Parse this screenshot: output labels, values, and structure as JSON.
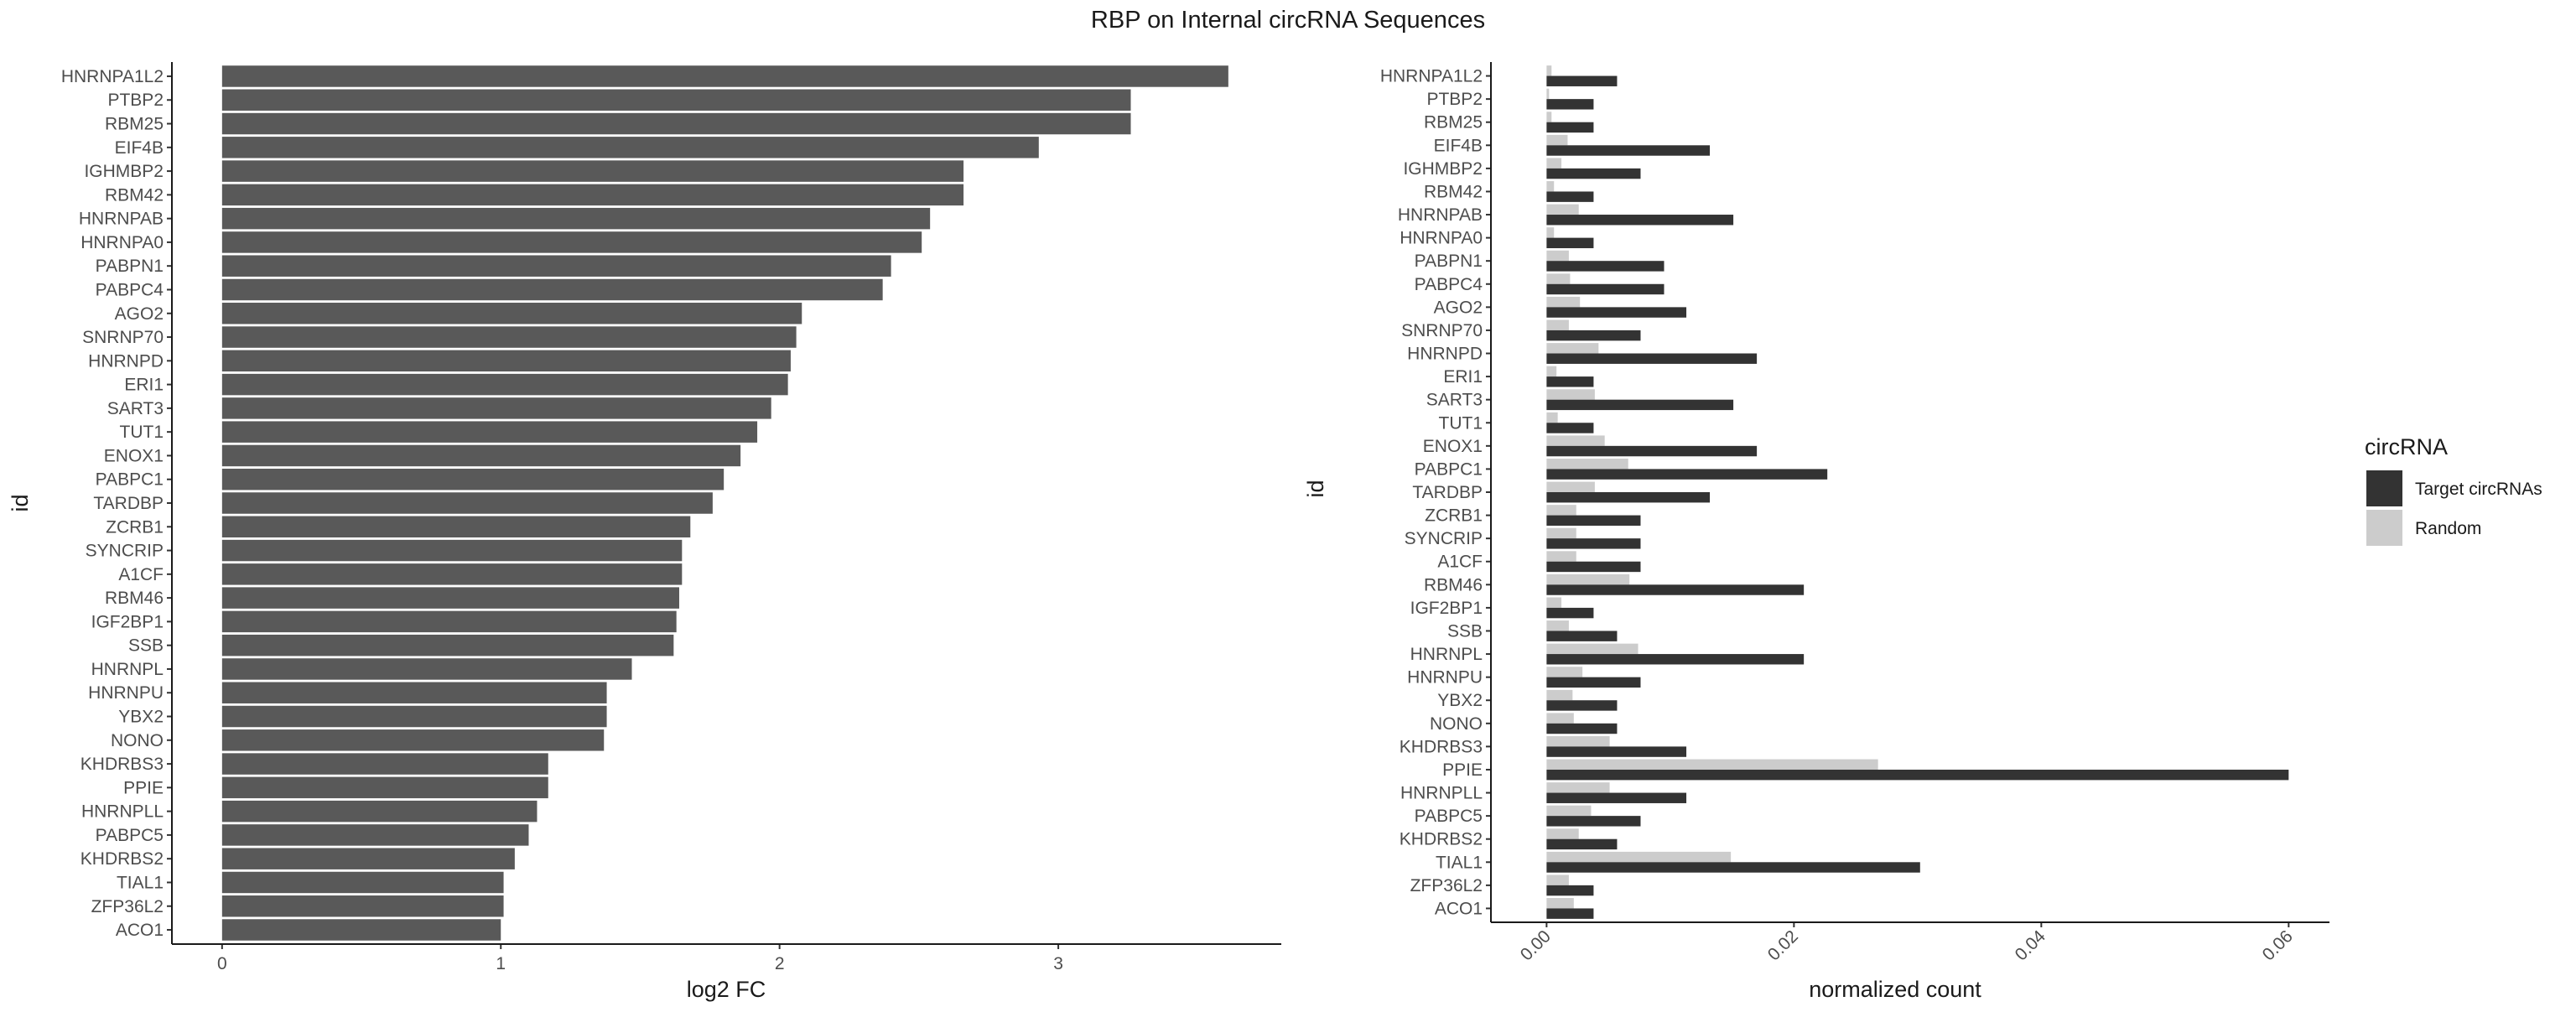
{
  "title": "RBP on Internal circRNA Sequences",
  "chart_data": [
    {
      "type": "bar",
      "orientation": "horizontal",
      "xlabel": "log2 FC",
      "ylabel": "id",
      "xlim": [
        -0.18,
        3.8
      ],
      "xticks": [
        0,
        1,
        2,
        3
      ],
      "xtick_labels": [
        "0",
        "1",
        "2",
        "3"
      ],
      "grid": false,
      "colors": {
        "bar": "#595959"
      },
      "categories": [
        "HNRNPA1L2",
        "PTBP2",
        "RBM25",
        "EIF4B",
        "IGHMBP2",
        "RBM42",
        "HNRNPAB",
        "HNRNPA0",
        "PABPN1",
        "PABPC4",
        "AGO2",
        "SNRNP70",
        "HNRNPD",
        "ERI1",
        "SART3",
        "TUT1",
        "ENOX1",
        "PABPC1",
        "TARDBP",
        "ZCRB1",
        "SYNCRIP",
        "A1CF",
        "RBM46",
        "IGF2BP1",
        "SSB",
        "HNRNPL",
        "HNRNPU",
        "YBX2",
        "NONO",
        "KHDRBS3",
        "PPIE",
        "HNRNPLL",
        "PABPC5",
        "KHDRBS2",
        "TIAL1",
        "ZFP36L2",
        "ACO1"
      ],
      "values": [
        3.61,
        3.26,
        3.26,
        2.93,
        2.66,
        2.66,
        2.54,
        2.51,
        2.4,
        2.37,
        2.08,
        2.06,
        2.04,
        2.03,
        1.97,
        1.92,
        1.86,
        1.8,
        1.76,
        1.68,
        1.65,
        1.65,
        1.64,
        1.63,
        1.62,
        1.47,
        1.38,
        1.38,
        1.37,
        1.17,
        1.17,
        1.13,
        1.1,
        1.05,
        1.01,
        1.01,
        1.0
      ]
    },
    {
      "type": "bar",
      "orientation": "horizontal",
      "subtype": "grouped",
      "xlabel": "normalized count",
      "ylabel": "id",
      "xlim": [
        -0.0045,
        0.0633
      ],
      "xticks": [
        0.0,
        0.02,
        0.04,
        0.06
      ],
      "xtick_labels": [
        "0.00",
        "0.02",
        "0.04",
        "0.06"
      ],
      "xtick_rotation": -45,
      "grid": false,
      "legend": {
        "title": "circRNA",
        "position": "right"
      },
      "categories": [
        "HNRNPA1L2",
        "PTBP2",
        "RBM25",
        "EIF4B",
        "IGHMBP2",
        "RBM42",
        "HNRNPAB",
        "HNRNPA0",
        "PABPN1",
        "PABPC4",
        "AGO2",
        "SNRNP70",
        "HNRNPD",
        "ERI1",
        "SART3",
        "TUT1",
        "ENOX1",
        "PABPC1",
        "TARDBP",
        "ZCRB1",
        "SYNCRIP",
        "A1CF",
        "RBM46",
        "IGF2BP1",
        "SSB",
        "HNRNPL",
        "HNRNPU",
        "YBX2",
        "NONO",
        "KHDRBS3",
        "PPIE",
        "HNRNPLL",
        "PABPC5",
        "KHDRBS2",
        "TIAL1",
        "ZFP36L2",
        "ACO1"
      ],
      "series": [
        {
          "name": "Target circRNAs",
          "color": "#333333",
          "values": [
            0.0057,
            0.0038,
            0.0038,
            0.0132,
            0.0076,
            0.0038,
            0.0151,
            0.0038,
            0.0095,
            0.0095,
            0.0113,
            0.0076,
            0.017,
            0.0038,
            0.0151,
            0.0038,
            0.017,
            0.0227,
            0.0132,
            0.0076,
            0.0076,
            0.0076,
            0.0208,
            0.0038,
            0.0057,
            0.0208,
            0.0076,
            0.0057,
            0.0057,
            0.0113,
            0.06,
            0.0113,
            0.0076,
            0.0057,
            0.0302,
            0.0038,
            0.0038
          ]
        },
        {
          "name": "Random",
          "color": "#cccccc",
          "values": [
            0.0004,
            0.0002,
            0.0004,
            0.0017,
            0.0012,
            0.0006,
            0.0026,
            0.0006,
            0.0018,
            0.0019,
            0.0027,
            0.0018,
            0.0042,
            0.0008,
            0.0039,
            0.0009,
            0.0047,
            0.0066,
            0.0039,
            0.0024,
            0.0024,
            0.0024,
            0.0067,
            0.0012,
            0.0018,
            0.0074,
            0.0029,
            0.0021,
            0.0022,
            0.0051,
            0.0268,
            0.0051,
            0.0036,
            0.0026,
            0.0149,
            0.0018,
            0.0022
          ]
        }
      ]
    }
  ]
}
